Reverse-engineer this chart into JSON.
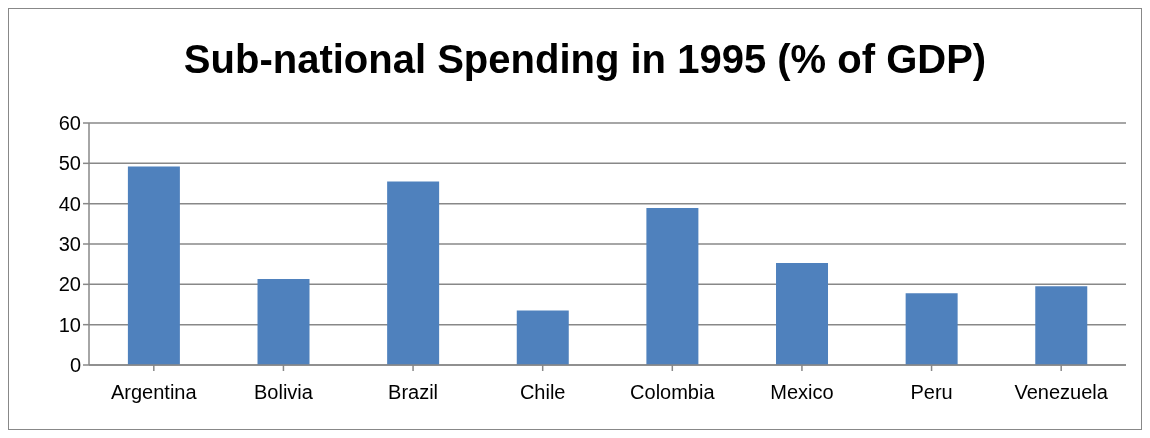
{
  "chart_data": {
    "type": "bar",
    "title": "Sub-national Spending in 1995 (% of GDP)",
    "categories": [
      "Argentina",
      "Bolivia",
      "Brazil",
      "Chile",
      "Colombia",
      "Mexico",
      "Peru",
      "Venezuela"
    ],
    "values": [
      49.2,
      21.3,
      45.5,
      13.5,
      38.9,
      25.3,
      17.8,
      19.5
    ],
    "color": "#4f81bd",
    "ylim": [
      0,
      60
    ],
    "yticks": [
      0,
      10,
      20,
      30,
      40,
      50,
      60
    ],
    "grid": "y"
  }
}
